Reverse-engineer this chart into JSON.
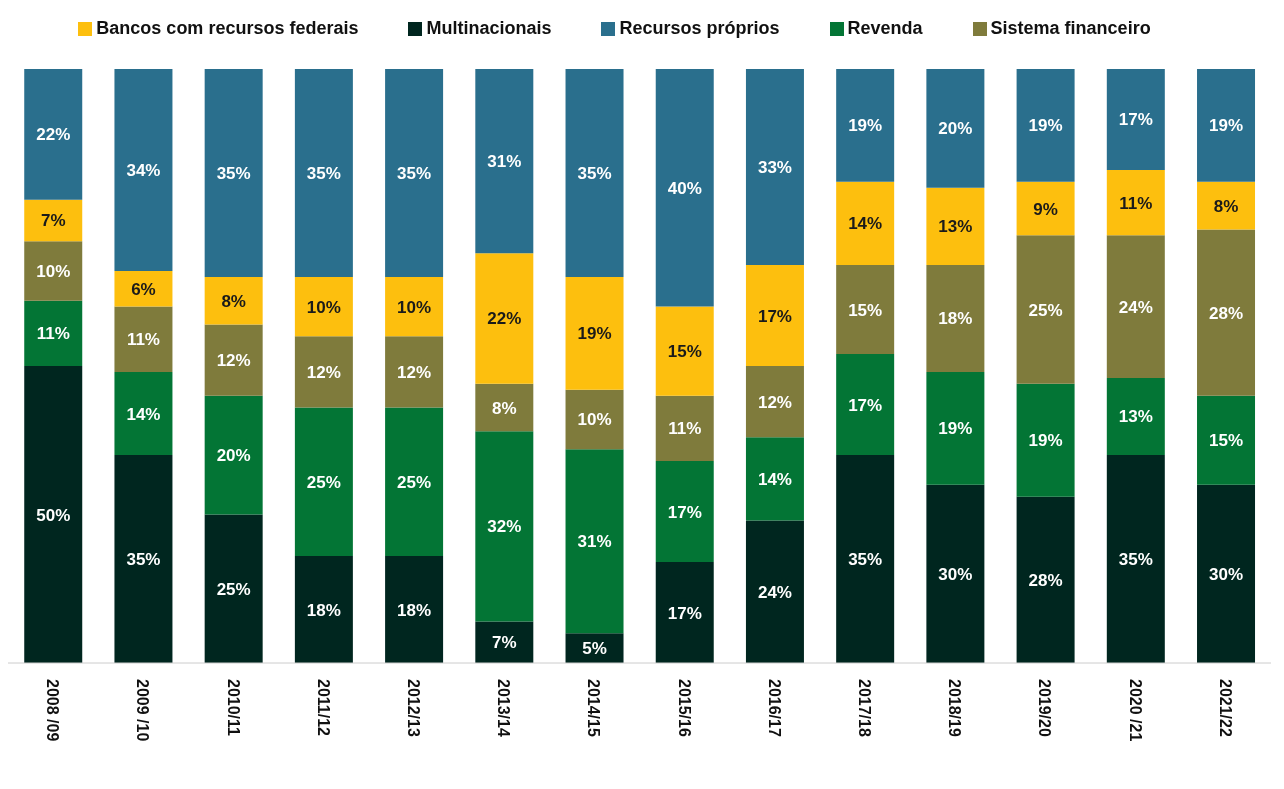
{
  "chart_data": {
    "type": "bar",
    "stacked": true,
    "categories": [
      "2008 /09",
      "2009 /10",
      "2010/11",
      "2011/12",
      "2012/13",
      "2013/14",
      "2014/15",
      "2015/16",
      "2016/17",
      "2017/18",
      "2018/19",
      "2019/20",
      "2020 /21",
      "2021/22"
    ],
    "ylim": [
      0,
      100
    ],
    "tick_labels": "x",
    "legend": "top",
    "grid": false,
    "series": [
      {
        "name": "Multinacionais",
        "color": "#00261f",
        "values": [
          50,
          35,
          25,
          18,
          18,
          7,
          5,
          17,
          24,
          35,
          30,
          28,
          35,
          30
        ],
        "value_labels": [
          "50%",
          "35%",
          "25%",
          "18%",
          "18%",
          "7%",
          "5%",
          "17%",
          "24%",
          "35%",
          "30%",
          "28%",
          "35%",
          "30%"
        ]
      },
      {
        "name": "Revenda",
        "color": "#037535",
        "values": [
          11,
          14,
          20,
          25,
          25,
          32,
          31,
          17,
          14,
          17,
          19,
          19,
          13,
          15
        ],
        "value_labels": [
          "11%",
          "14%",
          "20%",
          "25%",
          "25%",
          "32%",
          "31%",
          "17%",
          "14%",
          "17%",
          "19%",
          "19%",
          "13%",
          "15%"
        ]
      },
      {
        "name": "Sistema financeiro",
        "color": "#7f7b3c",
        "values": [
          10,
          11,
          12,
          12,
          12,
          8,
          10,
          11,
          12,
          15,
          18,
          25,
          24,
          28
        ],
        "value_labels": [
          "10%",
          "11%",
          "12%",
          "12%",
          "12%",
          "8%",
          "10%",
          "11%",
          "12%",
          "15%",
          "18%",
          "25%",
          "24%",
          "28%"
        ]
      },
      {
        "name": "Bancos com recursos federais",
        "color": "#fdbf0e",
        "values": [
          7,
          6,
          8,
          10,
          10,
          22,
          19,
          15,
          17,
          14,
          13,
          9,
          11,
          8
        ],
        "value_labels": [
          "7%",
          "6%",
          "8%",
          "10%",
          "10%",
          "22%",
          "19%",
          "15%",
          "17%",
          "14%",
          "13%",
          "9%",
          "11%",
          "8%"
        ]
      },
      {
        "name": "Recursos próprios",
        "color": "#2a6f8d",
        "values": [
          22,
          34,
          35,
          35,
          35,
          31,
          35,
          40,
          33,
          19,
          20,
          19,
          17,
          19
        ],
        "value_labels": [
          "22%",
          "34%",
          "35%",
          "35%",
          "35%",
          "31%",
          "35%",
          "40%",
          "33%",
          "19%",
          "20%",
          "19%",
          "17%",
          "19%"
        ]
      }
    ]
  }
}
